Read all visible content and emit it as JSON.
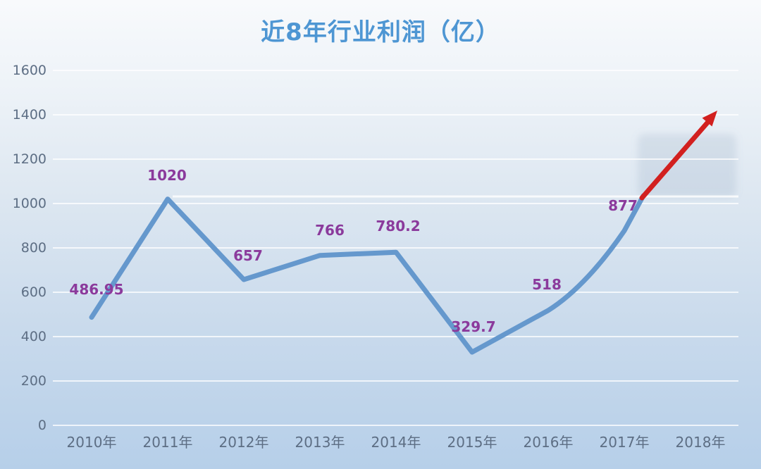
{
  "title": "近8年行业利润（亿）",
  "chart_data": {
    "type": "line",
    "title": "近8年行业利润（亿）",
    "categories": [
      "2010年",
      "2011年",
      "2012年",
      "2013年",
      "2014年",
      "2015年",
      "2016年",
      "2017年",
      "2018年"
    ],
    "series": [
      {
        "name": "行业利润",
        "values": [
          486.95,
          1020,
          657,
          766,
          780.2,
          329.7,
          518,
          877
        ]
      }
    ],
    "point_labels": [
      "486.95",
      "1020",
      "657",
      "766",
      "780.2",
      "329.7",
      "518",
      "877"
    ],
    "annotation": {
      "type": "trend-arrow",
      "description": "red rising arrow continuing the line from 2017年 toward 2018年",
      "approx_target_value": 1400
    },
    "ylim": [
      0,
      1600
    ],
    "yticks": [
      0,
      200,
      400,
      600,
      800,
      1000,
      1200,
      1400,
      1600
    ],
    "grid": "horizontal",
    "legend": false,
    "colors": {
      "line": "#6598cd",
      "arrow": "#d2201f",
      "data_label": "#8b3a9c",
      "title": "#4e96d3",
      "axis_label": "#5d6e84",
      "gridline": "rgba(255,255,255,0.75)",
      "background_top": "#f8fafc",
      "background_bottom": "#b6cfe9"
    }
  }
}
